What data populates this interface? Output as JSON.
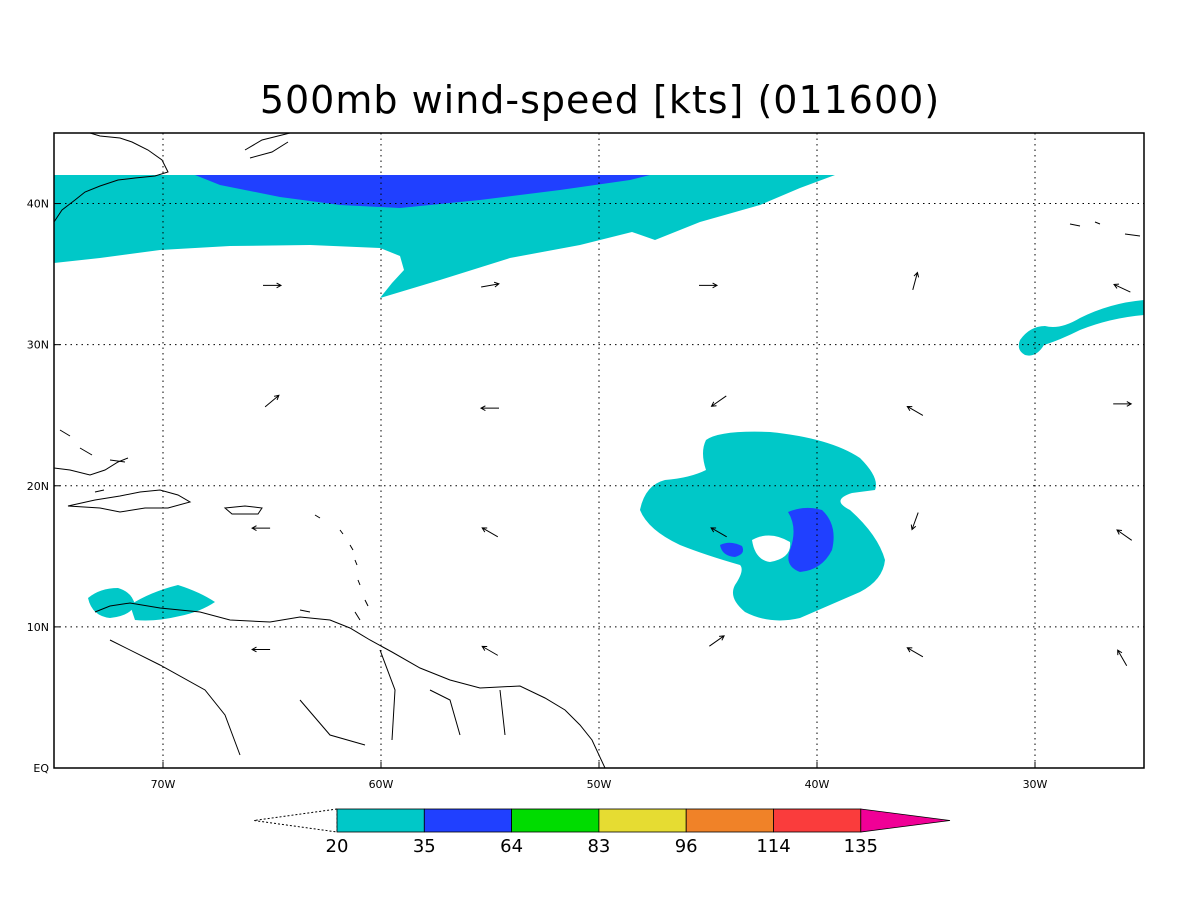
{
  "title": "500mb wind-speed [kts] (011600)",
  "map": {
    "lon_range": [
      -75,
      -25
    ],
    "lat_range": [
      0,
      45
    ],
    "lon_ticks": [
      {
        "value": -70,
        "label": "70W"
      },
      {
        "value": -60,
        "label": "60W"
      },
      {
        "value": -50,
        "label": "50W"
      },
      {
        "value": -40,
        "label": "40W"
      },
      {
        "value": -30,
        "label": "30W"
      }
    ],
    "lat_ticks": [
      {
        "value": 0,
        "label": "EQ"
      },
      {
        "value": 10,
        "label": "10N"
      },
      {
        "value": 20,
        "label": "20N"
      },
      {
        "value": 30,
        "label": "30N"
      },
      {
        "value": 40,
        "label": "40N"
      }
    ],
    "grid": "dotted",
    "colorbar": {
      "labels": [
        "20",
        "35",
        "64",
        "83",
        "96",
        "114",
        "135"
      ],
      "colors": [
        "#00c8c8",
        "#2040ff",
        "#00dc00",
        "#e6dc32",
        "#f08228",
        "#fa3c3c",
        "#f00096"
      ]
    },
    "wind_vectors": [
      {
        "lon": -65,
        "lat": 34.2,
        "dir": 0
      },
      {
        "lon": -55,
        "lat": 34.2,
        "dir": -10
      },
      {
        "lon": -45,
        "lat": 34.2,
        "dir": 0
      },
      {
        "lon": -35.5,
        "lat": 34.5,
        "dir": -75
      },
      {
        "lon": -26,
        "lat": 34,
        "dir": -155
      },
      {
        "lon": -65,
        "lat": 26,
        "dir": -40
      },
      {
        "lon": -55,
        "lat": 25.5,
        "dir": 180
      },
      {
        "lon": -44.5,
        "lat": 26,
        "dir": 145
      },
      {
        "lon": -35.5,
        "lat": 25.3,
        "dir": 210
      },
      {
        "lon": -26,
        "lat": 25.8,
        "dir": 0
      },
      {
        "lon": -65.5,
        "lat": 17,
        "dir": 180
      },
      {
        "lon": -55,
        "lat": 16.7,
        "dir": 210
      },
      {
        "lon": -44.5,
        "lat": 16.7,
        "dir": 210
      },
      {
        "lon": -35.5,
        "lat": 17.5,
        "dir": 110
      },
      {
        "lon": -25.9,
        "lat": 16.5,
        "dir": 215
      },
      {
        "lon": -65.5,
        "lat": 8.4,
        "dir": 180
      },
      {
        "lon": -55,
        "lat": 8.3,
        "dir": 210
      },
      {
        "lon": -44.6,
        "lat": 9,
        "dir": -35
      },
      {
        "lon": -35.5,
        "lat": 8.2,
        "dir": 210
      },
      {
        "lon": -26,
        "lat": 7.8,
        "dir": 240
      }
    ]
  }
}
